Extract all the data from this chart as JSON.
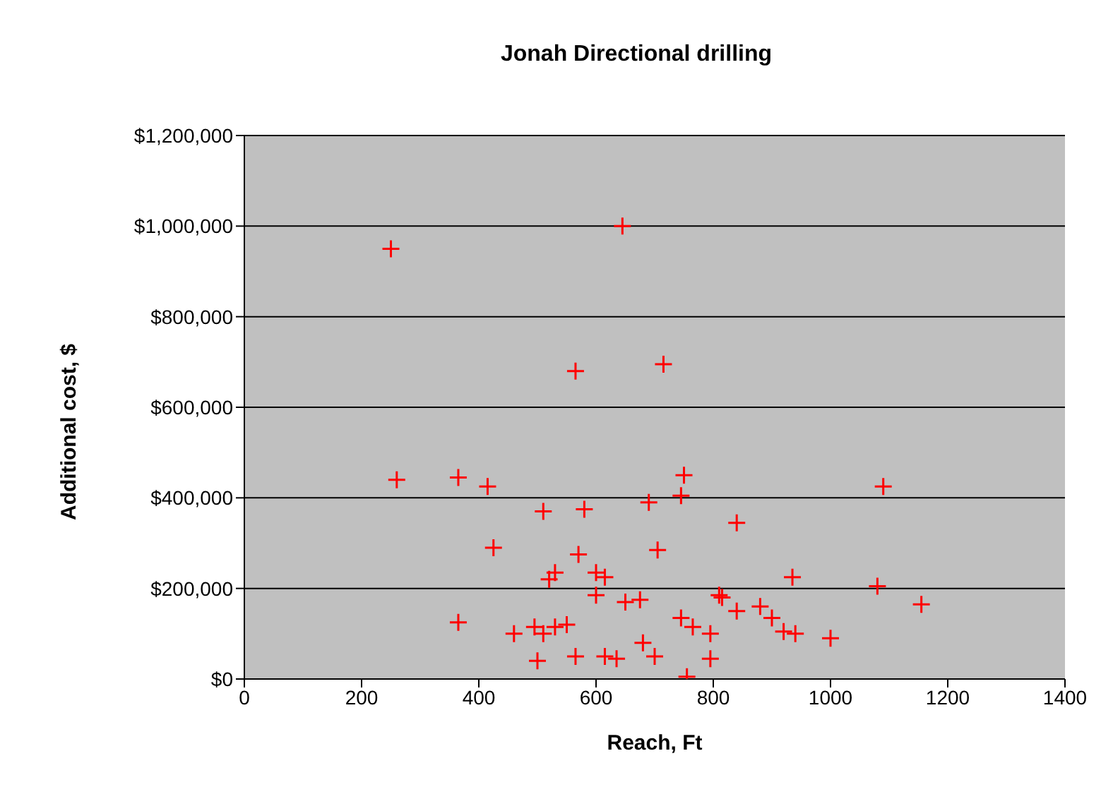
{
  "chart_data": {
    "type": "scatter",
    "title": "Jonah Directional drilling",
    "xlabel": "Reach, Ft",
    "ylabel": "Additional cost, $",
    "x": [
      250,
      645,
      565,
      715,
      260,
      365,
      415,
      750,
      745,
      1090,
      510,
      580,
      840,
      425,
      570,
      705,
      935,
      1080,
      1155,
      1000,
      940,
      920,
      880,
      900,
      840,
      810,
      815,
      795,
      795,
      755,
      765,
      745,
      700,
      680,
      690,
      530,
      520,
      600,
      615,
      600,
      650,
      675,
      365,
      460,
      495,
      510,
      530,
      550,
      500,
      565,
      615,
      635
    ],
    "values": [
      950000,
      1000000,
      680000,
      695000,
      440000,
      445000,
      425000,
      450000,
      405000,
      425000,
      370000,
      375000,
      345000,
      290000,
      275000,
      285000,
      225000,
      205000,
      165000,
      90000,
      100000,
      105000,
      160000,
      135000,
      150000,
      185000,
      180000,
      100000,
      45000,
      5000,
      115000,
      135000,
      50000,
      80000,
      390000,
      235000,
      220000,
      235000,
      225000,
      185000,
      170000,
      175000,
      125000,
      100000,
      115000,
      100000,
      115000,
      120000,
      40000,
      50000,
      50000,
      45000
    ],
    "color": "#ff0000",
    "marker": "cross",
    "grid": "y",
    "legend": false,
    "xlim": [
      0,
      1400
    ],
    "xticks": [
      0,
      200,
      400,
      600,
      800,
      1000,
      1200,
      1400
    ],
    "ylim": [
      0,
      1200000
    ],
    "yticks": [
      {
        "value": 0,
        "label": "$0"
      },
      {
        "value": 200000,
        "label": "$200,000"
      },
      {
        "value": 400000,
        "label": "$400,000"
      },
      {
        "value": 600000,
        "label": "$600,000"
      },
      {
        "value": 800000,
        "label": "$800,000"
      },
      {
        "value": 1000000,
        "label": "$1,000,000"
      },
      {
        "value": 1200000,
        "label": "$1,200,000"
      }
    ]
  }
}
